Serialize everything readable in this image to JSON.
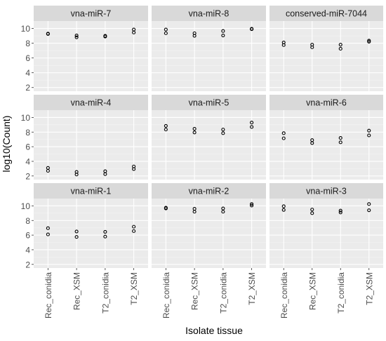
{
  "chart_data": {
    "type": "scatter",
    "layout": "facet-grid-3x3",
    "xlabel": "Isolate tissue",
    "ylabel": "log10(Count)",
    "categories": [
      "Rec_conidia",
      "Rec_XSM",
      "T2_conidia",
      "T2_XSM"
    ],
    "ylim": [
      1.5,
      11
    ],
    "yticks": [
      2,
      4,
      6,
      8,
      10
    ],
    "grid": true,
    "legend": "none",
    "colors": {
      "panel_bg": "#ebebeb",
      "strip_bg": "#d9d9d9",
      "grid_major": "#ffffff",
      "grid_minor": "#f4f4f4",
      "point": "#000000",
      "axis_text": "#4d4d4d",
      "strip_text": "#1a1a1a",
      "title_text": "#000000"
    },
    "panels": [
      {
        "title": "vna-miR-7",
        "points": [
          [
            9.25,
            9.3
          ],
          [
            8.8,
            9.05
          ],
          [
            8.9,
            9.0
          ],
          [
            9.45,
            9.85
          ]
        ]
      },
      {
        "title": "vna-miR-8",
        "points": [
          [
            9.35,
            9.85
          ],
          [
            9.0,
            9.35
          ],
          [
            9.05,
            9.65
          ],
          [
            9.9,
            9.95
          ]
        ]
      },
      {
        "title": "conserved-miR-7044",
        "points": [
          [
            7.75,
            8.1
          ],
          [
            7.45,
            7.8
          ],
          [
            7.25,
            7.8
          ],
          [
            8.2,
            8.35
          ]
        ]
      },
      {
        "title": "vna-miR-4",
        "points": [
          [
            2.7,
            3.1
          ],
          [
            2.2,
            2.55
          ],
          [
            2.25,
            2.65
          ],
          [
            2.95,
            3.3
          ]
        ]
      },
      {
        "title": "vna-miR-5",
        "points": [
          [
            8.35,
            8.85
          ],
          [
            7.95,
            8.45
          ],
          [
            7.85,
            8.35
          ],
          [
            8.7,
            9.3
          ]
        ]
      },
      {
        "title": "vna-miR-6",
        "points": [
          [
            7.15,
            7.85
          ],
          [
            6.5,
            6.9
          ],
          [
            6.6,
            7.2
          ],
          [
            7.55,
            8.2
          ]
        ]
      },
      {
        "title": "vna-miR-1",
        "points": [
          [
            6.1,
            6.95
          ],
          [
            5.75,
            6.5
          ],
          [
            5.8,
            6.45
          ],
          [
            6.55,
            7.15
          ]
        ]
      },
      {
        "title": "vna-miR-2",
        "points": [
          [
            9.65,
            9.75
          ],
          [
            9.2,
            9.6
          ],
          [
            9.2,
            9.65
          ],
          [
            10.05,
            10.25
          ]
        ]
      },
      {
        "title": "vna-miR-3",
        "points": [
          [
            9.45,
            9.95
          ],
          [
            9.0,
            9.5
          ],
          [
            9.1,
            9.35
          ],
          [
            9.4,
            10.25
          ]
        ]
      }
    ]
  }
}
